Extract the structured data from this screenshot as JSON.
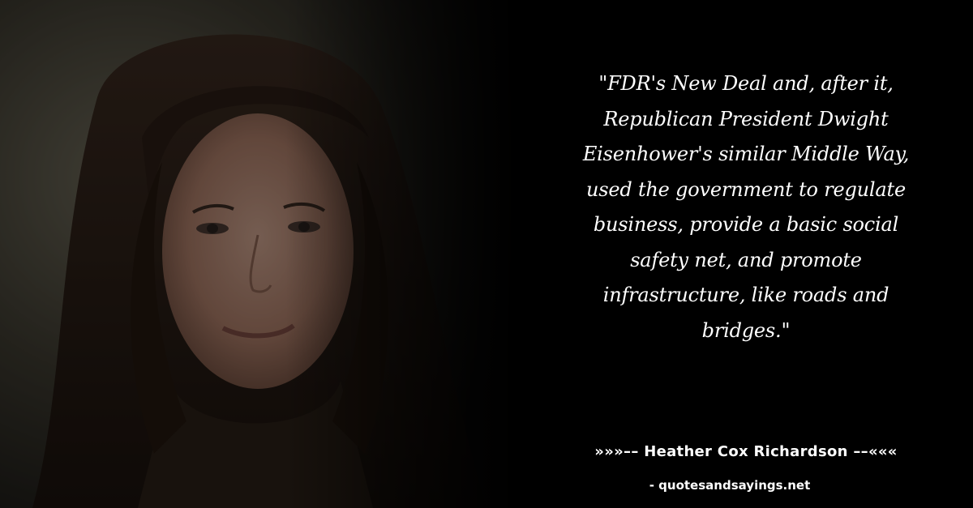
{
  "quote": {
    "lines": [
      "\"FDR's New Deal and, after it,",
      "Republican President Dwight",
      "Eisenhower's similar Middle Way,",
      "used the government to regulate",
      "business, provide a basic social",
      "safety net, and promote",
      "infrastructure, like roads and",
      "bridges.\""
    ]
  },
  "author": {
    "line": "»»»–– Heather Cox Richardson ––«««"
  },
  "site": {
    "line": "- quotesandsayings.net"
  },
  "colors": {
    "background": "#000000",
    "text": "#ffffff"
  },
  "photo": {
    "subject": "portrait-photo"
  }
}
